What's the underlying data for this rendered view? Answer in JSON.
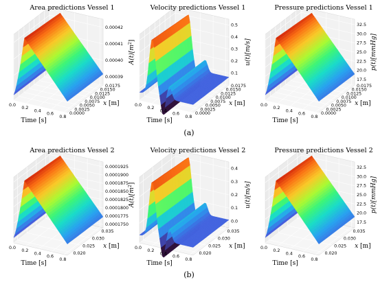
{
  "panel_labels": [
    "(a)",
    "(b)"
  ],
  "chart_data": [
    {
      "type": "surface",
      "title": "Area predictions Vessel 1",
      "xlabel": "Time [s]",
      "ylabel": "x [m]",
      "zlabel": "A(t)[m^2]",
      "x_ticks": [
        "0.0",
        "0.2",
        "0.4",
        "0.6",
        "0.8"
      ],
      "y_ticks": [
        "0.0000",
        "0.0025",
        "0.0050",
        "0.0075",
        "0.0100",
        "0.0125",
        "0.0150",
        "0.0175"
      ],
      "z_ticks": [
        "0.00039",
        "0.00040",
        "0.00041",
        "0.00042"
      ],
      "xlim": [
        0,
        0.85
      ],
      "ylim": [
        0,
        0.0175
      ],
      "zlim": [
        0.000385,
        0.000425
      ],
      "profile": "area"
    },
    {
      "type": "surface",
      "title": "Velocity predictions Vessel 1",
      "xlabel": "Time [s]",
      "ylabel": "x [m]",
      "zlabel": "u(t)[m/s]",
      "x_ticks": [
        "0.0",
        "0.2",
        "0.4",
        "0.6",
        "0.8"
      ],
      "y_ticks": [
        "0.0000",
        "0.0025",
        "0.0050",
        "0.0075",
        "0.0100",
        "0.0125",
        "0.0150",
        "0.0175"
      ],
      "z_ticks": [
        "0.1",
        "0.2",
        "0.3",
        "0.4",
        "0.5"
      ],
      "xlim": [
        0,
        0.85
      ],
      "ylim": [
        0,
        0.0175
      ],
      "zlim": [
        0.0,
        0.55
      ],
      "profile": "velocity"
    },
    {
      "type": "surface",
      "title": "Pressure predictions Vessel 1",
      "xlabel": "Time [s]",
      "ylabel": "x [m]",
      "zlabel": "p(t)[mmHg]",
      "x_ticks": [
        "0.0",
        "0.2",
        "0.4",
        "0.6",
        "0.8"
      ],
      "y_ticks": [
        "0.0000",
        "0.0025",
        "0.0050",
        "0.0075",
        "0.0100",
        "0.0125",
        "0.0150",
        "0.0175"
      ],
      "z_ticks": [
        "17.5",
        "20.0",
        "22.5",
        "25.0",
        "27.5",
        "30.0",
        "32.5"
      ],
      "xlim": [
        0,
        0.85
      ],
      "ylim": [
        0,
        0.0175
      ],
      "zlim": [
        16,
        34
      ],
      "profile": "pressure"
    },
    {
      "type": "surface",
      "title": "Area predictions Vessel 2",
      "xlabel": "Time [s]",
      "ylabel": "x [m]",
      "zlabel": "A(t)[m^2]",
      "x_ticks": [
        "0.0",
        "0.2",
        "0.4",
        "0.6",
        "0.8"
      ],
      "y_ticks": [
        "0.020",
        "0.025",
        "0.030",
        "0.035"
      ],
      "z_ticks": [
        "0.0001750",
        "0.0001775",
        "0.0001800",
        "0.0001825",
        "0.0001850",
        "0.0001875",
        "0.0001900",
        "0.0001925"
      ],
      "xlim": [
        0,
        0.85
      ],
      "ylim": [
        0.018,
        0.037
      ],
      "zlim": [
        0.000174,
        0.000194
      ],
      "profile": "area"
    },
    {
      "type": "surface",
      "title": "Velocity predictions Vessel 2",
      "xlabel": "Time [s]",
      "ylabel": "x [m]",
      "zlabel": "u(t)[m/s]",
      "x_ticks": [
        "0.0",
        "0.2",
        "0.4",
        "0.6",
        "0.8"
      ],
      "y_ticks": [
        "0.020",
        "0.025",
        "0.030",
        "0.035"
      ],
      "z_ticks": [
        "0.0",
        "0.1",
        "0.2",
        "0.3",
        "0.4"
      ],
      "xlim": [
        0,
        0.85
      ],
      "ylim": [
        0.018,
        0.037
      ],
      "zlim": [
        -0.05,
        0.45
      ],
      "profile": "velocity"
    },
    {
      "type": "surface",
      "title": "Pressure predictions Vessel 2",
      "xlabel": "Time [s]",
      "ylabel": "x [m]",
      "zlabel": "p(t)[mmHg]",
      "x_ticks": [
        "0.0",
        "0.2",
        "0.4",
        "0.6",
        "0.8"
      ],
      "y_ticks": [
        "0.020",
        "0.025",
        "0.030",
        "0.035"
      ],
      "z_ticks": [
        "17.5",
        "20.0",
        "22.5",
        "25.0",
        "27.5",
        "30.0",
        "32.5"
      ],
      "xlim": [
        0,
        0.85
      ],
      "ylim": [
        0.018,
        0.037
      ],
      "zlim": [
        16,
        34
      ],
      "profile": "pressure"
    }
  ]
}
